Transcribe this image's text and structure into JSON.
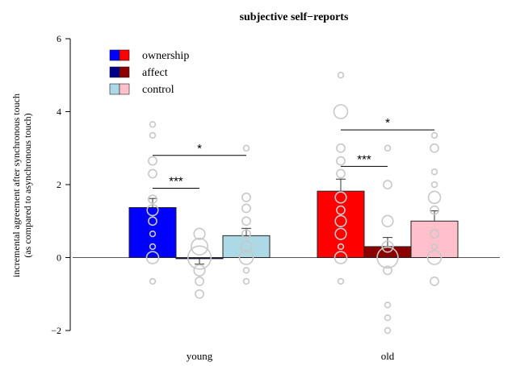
{
  "chart_data": {
    "type": "bar",
    "title": "subjective self−reports",
    "ylabel_line1": "incremental agreement after synchronous touch",
    "ylabel_line2": "(as compared to asynchronous touch)",
    "xlabel": "",
    "ylim": [
      -2,
      6
    ],
    "yticks": [
      -2,
      0,
      2,
      4,
      6
    ],
    "ytick_labels": [
      "−2",
      "0",
      "2",
      "4",
      "6"
    ],
    "grid": false,
    "legend": {
      "placement": "top-left",
      "entries": [
        {
          "label": "ownership",
          "colors": [
            "#0000ff",
            "#ff0000"
          ]
        },
        {
          "label": "affect",
          "colors": [
            "#00008b",
            "#8b0000"
          ]
        },
        {
          "label": "control",
          "colors": [
            "#add8e6",
            "#ffc0cb"
          ]
        }
      ]
    },
    "groups": [
      {
        "label": "young",
        "bars": [
          {
            "measure": "ownership",
            "value": 1.37,
            "error": 0.25,
            "color": "#0000ff",
            "points": [
              {
                "y": 3.65,
                "s": 1
              },
              {
                "y": 3.35,
                "s": 1
              },
              {
                "y": 2.65,
                "s": 1.5
              },
              {
                "y": 2.3,
                "s": 1.5
              },
              {
                "y": 1.6,
                "s": 1.5
              },
              {
                "y": 1.3,
                "s": 2
              },
              {
                "y": 1.0,
                "s": 1.5
              },
              {
                "y": 0.65,
                "s": 1
              },
              {
                "y": 0.3,
                "s": 1
              },
              {
                "y": 0.0,
                "s": 2.2
              },
              {
                "y": -0.65,
                "s": 1
              }
            ]
          },
          {
            "measure": "affect",
            "value": -0.03,
            "error": 0.15,
            "color": "#00008b",
            "points": [
              {
                "y": 0.65,
                "s": 2
              },
              {
                "y": 0.3,
                "s": 3
              },
              {
                "y": 0.0,
                "s": 4.2
              },
              {
                "y": -0.35,
                "s": 2
              },
              {
                "y": -0.65,
                "s": 1.5
              },
              {
                "y": -1.0,
                "s": 1.5
              }
            ]
          },
          {
            "measure": "control",
            "value": 0.6,
            "error": 0.2,
            "color": "#add8e6",
            "points": [
              {
                "y": 3.0,
                "s": 1
              },
              {
                "y": 1.65,
                "s": 1.5
              },
              {
                "y": 1.35,
                "s": 1.5
              },
              {
                "y": 1.0,
                "s": 1.5
              },
              {
                "y": 0.65,
                "s": 1.5
              },
              {
                "y": 0.3,
                "s": 2
              },
              {
                "y": 0.0,
                "s": 2.5
              },
              {
                "y": -0.35,
                "s": 1
              },
              {
                "y": -0.65,
                "s": 1
              }
            ]
          }
        ]
      },
      {
        "label": "old",
        "bars": [
          {
            "measure": "ownership",
            "value": 1.82,
            "error": 0.33,
            "color": "#ff0000",
            "points": [
              {
                "y": 5.0,
                "s": 1
              },
              {
                "y": 4.0,
                "s": 2.5
              },
              {
                "y": 3.0,
                "s": 1.5
              },
              {
                "y": 2.65,
                "s": 1.5
              },
              {
                "y": 2.3,
                "s": 1.5
              },
              {
                "y": 1.65,
                "s": 2
              },
              {
                "y": 1.3,
                "s": 1.5
              },
              {
                "y": 1.0,
                "s": 2
              },
              {
                "y": 0.65,
                "s": 2
              },
              {
                "y": 0.3,
                "s": 1
              },
              {
                "y": 0.0,
                "s": 2.2
              },
              {
                "y": -0.65,
                "s": 1
              }
            ]
          },
          {
            "measure": "affect",
            "value": 0.3,
            "error": 0.25,
            "color": "#8b0000",
            "points": [
              {
                "y": 3.0,
                "s": 1
              },
              {
                "y": 2.0,
                "s": 1.5
              },
              {
                "y": 1.0,
                "s": 2
              },
              {
                "y": 0.3,
                "s": 2
              },
              {
                "y": 0.0,
                "s": 3.8
              },
              {
                "y": -0.35,
                "s": 1.5
              },
              {
                "y": -1.3,
                "s": 1
              },
              {
                "y": -1.65,
                "s": 1
              },
              {
                "y": -2.0,
                "s": 1
              }
            ]
          },
          {
            "measure": "control",
            "value": 1.0,
            "error": 0.28,
            "color": "#ffc0cb",
            "points": [
              {
                "y": 3.35,
                "s": 1
              },
              {
                "y": 3.0,
                "s": 1.5
              },
              {
                "y": 2.35,
                "s": 1
              },
              {
                "y": 2.0,
                "s": 1
              },
              {
                "y": 1.65,
                "s": 2.2
              },
              {
                "y": 1.3,
                "s": 1.5
              },
              {
                "y": 0.65,
                "s": 1.5
              },
              {
                "y": 0.3,
                "s": 1
              },
              {
                "y": 0.0,
                "s": 2.5
              },
              {
                "y": -0.65,
                "s": 1.5
              }
            ]
          }
        ]
      }
    ],
    "annotations": [
      {
        "text": "***",
        "group": 0,
        "from_bar": 0,
        "to_bar": 1,
        "y": 1.9
      },
      {
        "text": "*",
        "group": 0,
        "from_bar": 0,
        "to_bar": 2,
        "y": 2.8
      },
      {
        "text": "***",
        "group": 1,
        "from_bar": 0,
        "to_bar": 1,
        "y": 2.5
      },
      {
        "text": "*",
        "group": 1,
        "from_bar": 0,
        "to_bar": 2,
        "y": 3.5
      }
    ]
  }
}
